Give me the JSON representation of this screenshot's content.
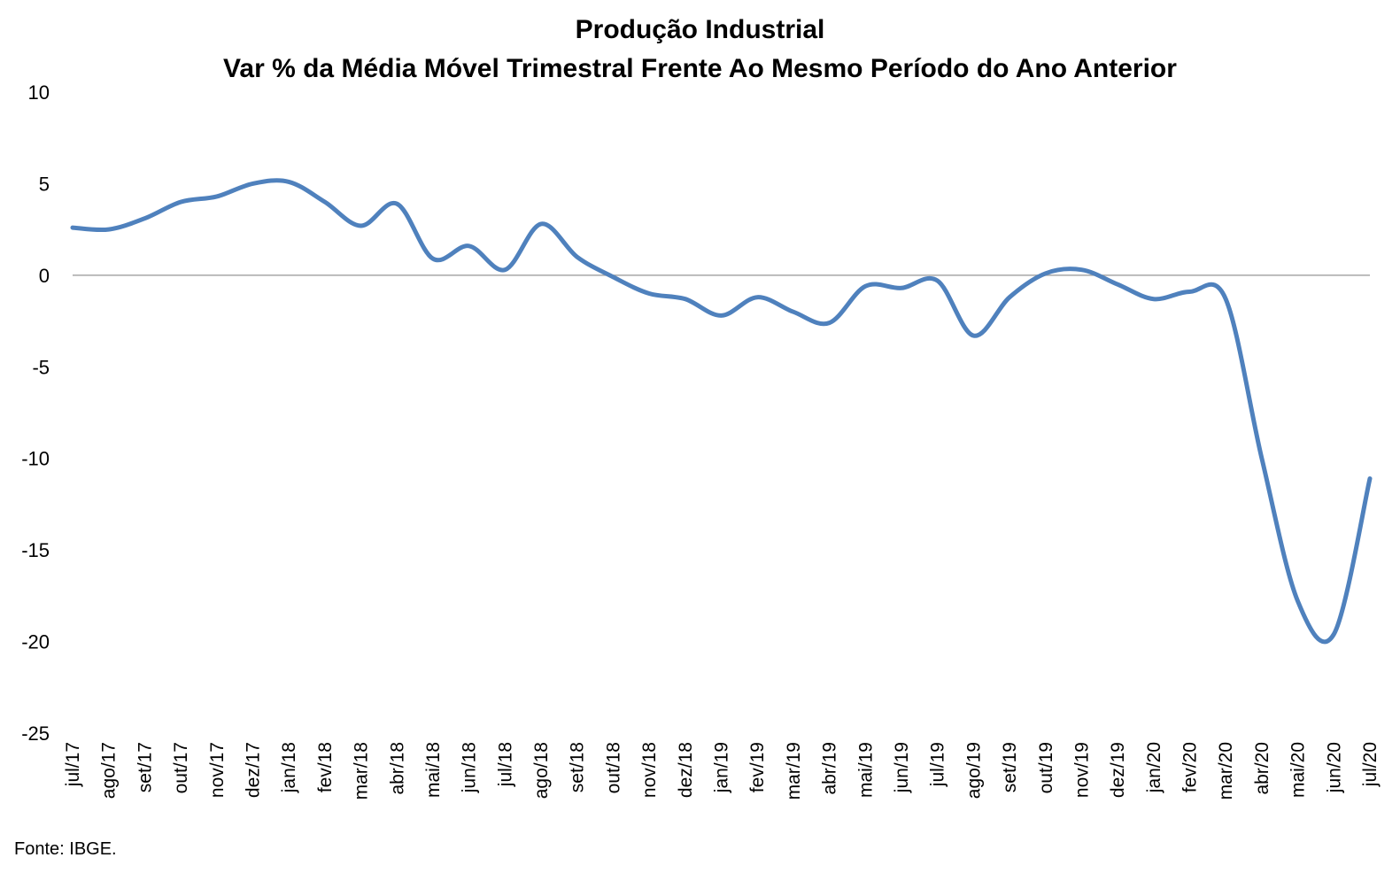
{
  "chart_data": {
    "type": "line",
    "title": "Produção Industrial",
    "subtitle": "Var % da Média Móvel Trimestral Frente Ao Mesmo Período do Ano Anterior",
    "xlabel": "",
    "ylabel": "",
    "ylim": [
      -25,
      10
    ],
    "yticks": [
      10,
      5,
      0,
      -5,
      -10,
      -15,
      -20,
      -25
    ],
    "grid": false,
    "legend": "none",
    "categories": [
      "jul/17",
      "ago/17",
      "set/17",
      "out/17",
      "nov/17",
      "dez/17",
      "jan/18",
      "fev/18",
      "mar/18",
      "abr/18",
      "mai/18",
      "jun/18",
      "jul/18",
      "ago/18",
      "set/18",
      "out/18",
      "nov/18",
      "dez/18",
      "jan/19",
      "fev/19",
      "mar/19",
      "abr/19",
      "mai/19",
      "jun/19",
      "jul/19",
      "ago/19",
      "set/19",
      "out/19",
      "nov/19",
      "dez/19",
      "jan/20",
      "fev/20",
      "mar/20",
      "abr/20",
      "mai/20",
      "jun/20",
      "jul/20"
    ],
    "series": [
      {
        "color": "#4f81bd",
        "values": [
          2.6,
          2.5,
          3.1,
          4.0,
          4.3,
          5.0,
          5.1,
          4.0,
          2.7,
          3.9,
          0.9,
          1.6,
          0.3,
          2.8,
          1.0,
          -0.1,
          -1.0,
          -1.3,
          -2.2,
          -1.2,
          -2.0,
          -2.6,
          -0.6,
          -0.7,
          -0.3,
          -3.3,
          -1.2,
          0.1,
          0.3,
          -0.5,
          -1.3,
          -0.9,
          -1.3,
          -10.0,
          -17.8,
          -19.6,
          -11.1
        ]
      }
    ],
    "zero_line_color": "#a6a6a6"
  },
  "footer": {
    "source": "Fonte: IBGE."
  }
}
